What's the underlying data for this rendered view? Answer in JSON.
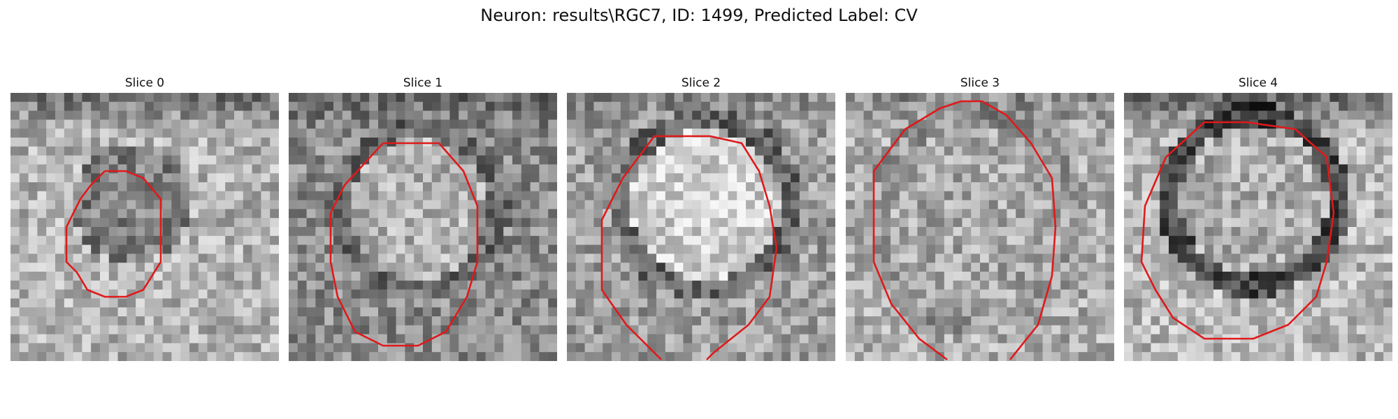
{
  "figure": {
    "title": "Neuron: results\\RGC7, ID: 1499, Predicted Label: CV"
  },
  "panels": [
    {
      "title": "Slice 0"
    },
    {
      "title": "Slice 1"
    },
    {
      "title": "Slice 2"
    },
    {
      "title": "Slice 3"
    },
    {
      "title": "Slice 4"
    }
  ],
  "colors": {
    "contour": "#e0191b",
    "background": "#ffffff",
    "image_colormap": "grayscale"
  }
}
